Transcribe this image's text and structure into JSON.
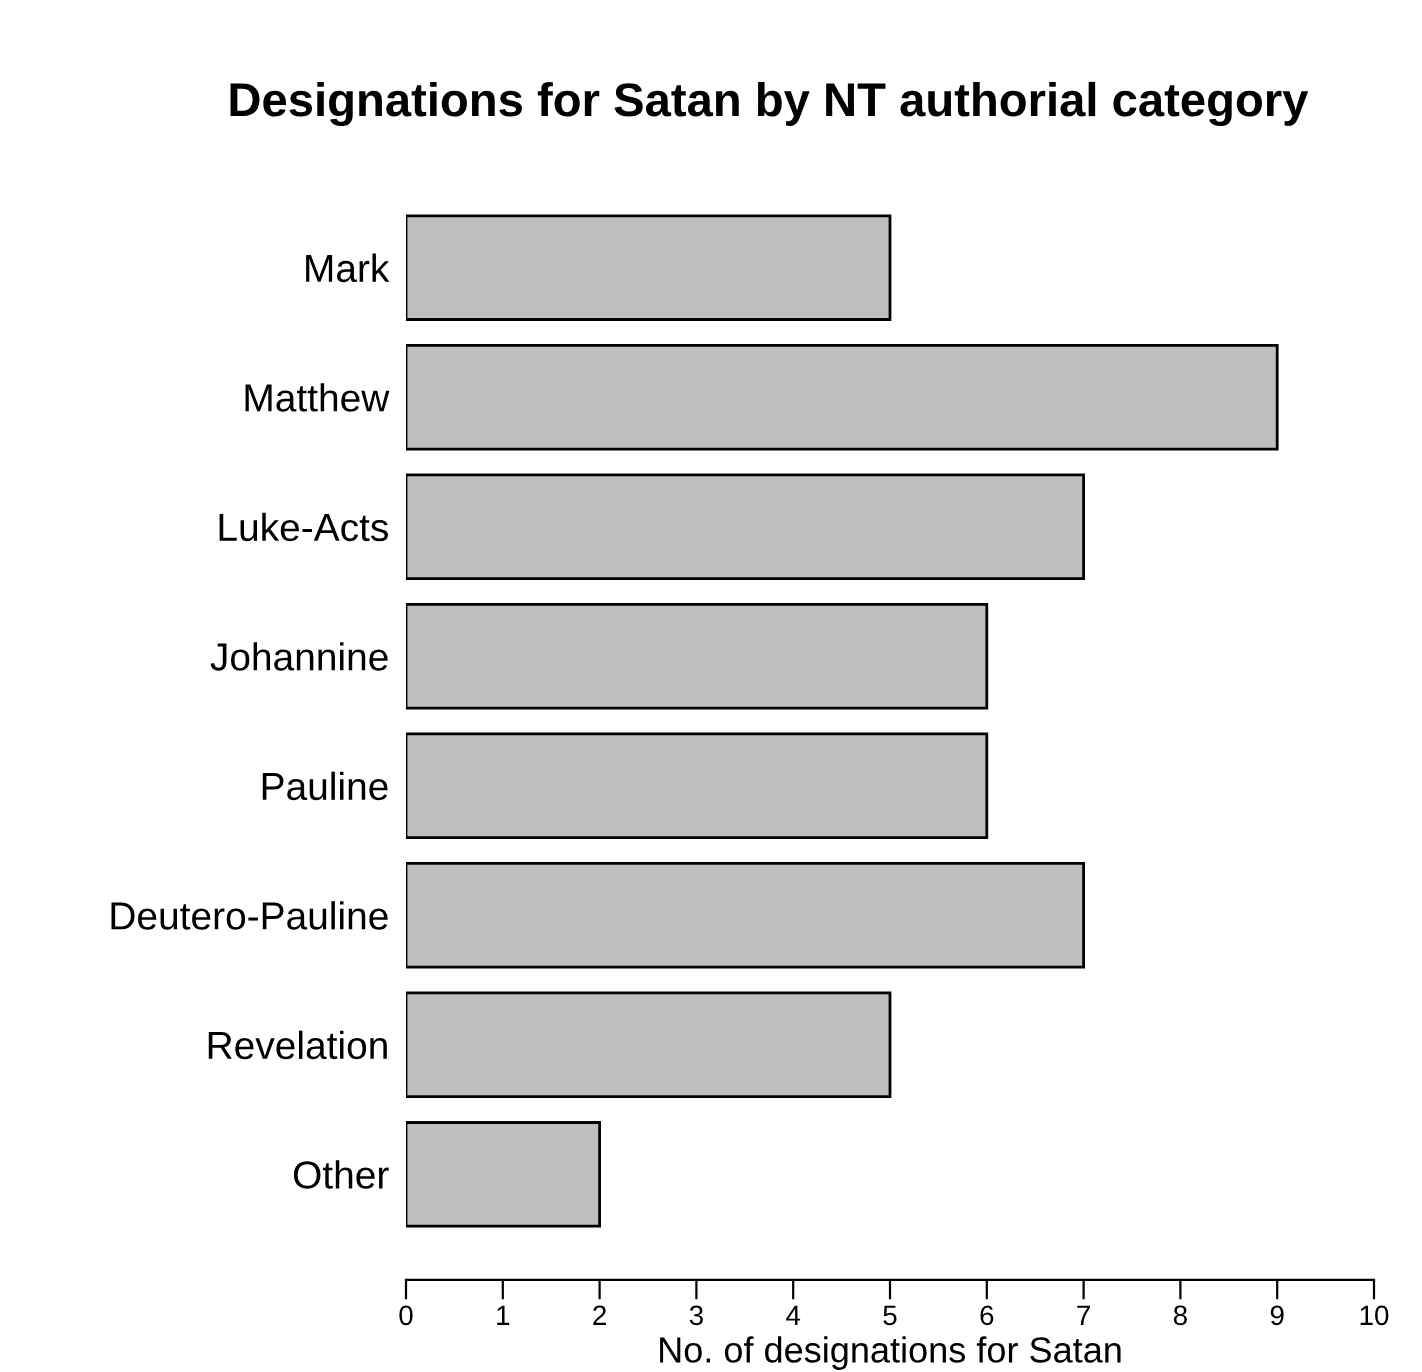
{
  "chart_data": {
    "type": "bar",
    "orientation": "horizontal",
    "title": "Designations for Satan by NT authorial category",
    "xlabel": "No. of designations for Satan",
    "categories": [
      "Mark",
      "Matthew",
      "Luke-Acts",
      "Johannine",
      "Pauline",
      "Deutero-Pauline",
      "Revelation",
      "Other"
    ],
    "values": [
      5,
      9,
      7,
      6,
      6,
      7,
      5,
      2
    ],
    "color": "#bebebe",
    "xlim": [
      0,
      10
    ],
    "xticks": [
      0,
      1,
      2,
      3,
      4,
      5,
      6,
      7,
      8,
      9,
      10
    ],
    "grid": false,
    "legend": false
  }
}
